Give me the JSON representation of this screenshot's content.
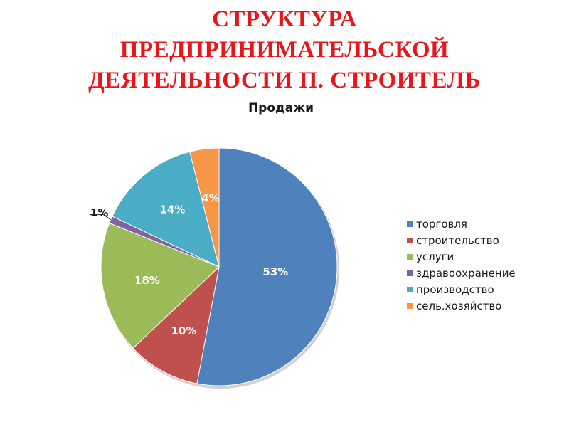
{
  "slide": {
    "title_lines": [
      "СТРУКТУРА",
      "ПРЕДПРИНИМАТЕЛЬСКОЙ",
      "ДЕЯТЕЛЬНОСТИ П. СТРОИТЕЛЬ"
    ],
    "title_color": "#e8161b"
  },
  "chart_data": {
    "type": "pie",
    "title": "Продажи",
    "categories": [
      "торговля",
      "строительство",
      "услуги",
      "здравоохранение",
      "производство",
      "сель.хозяйство"
    ],
    "values": [
      53,
      10,
      18,
      1,
      14,
      4
    ],
    "labels": [
      "53%",
      "10%",
      "18%",
      "1%",
      "14%",
      "4%"
    ],
    "colors": [
      "#4f81bd",
      "#c0504d",
      "#9bbb59",
      "#8064a2",
      "#4bacc6",
      "#f79646"
    ],
    "legend_position": "right",
    "start": "12 o'clock",
    "direction": "clockwise"
  }
}
